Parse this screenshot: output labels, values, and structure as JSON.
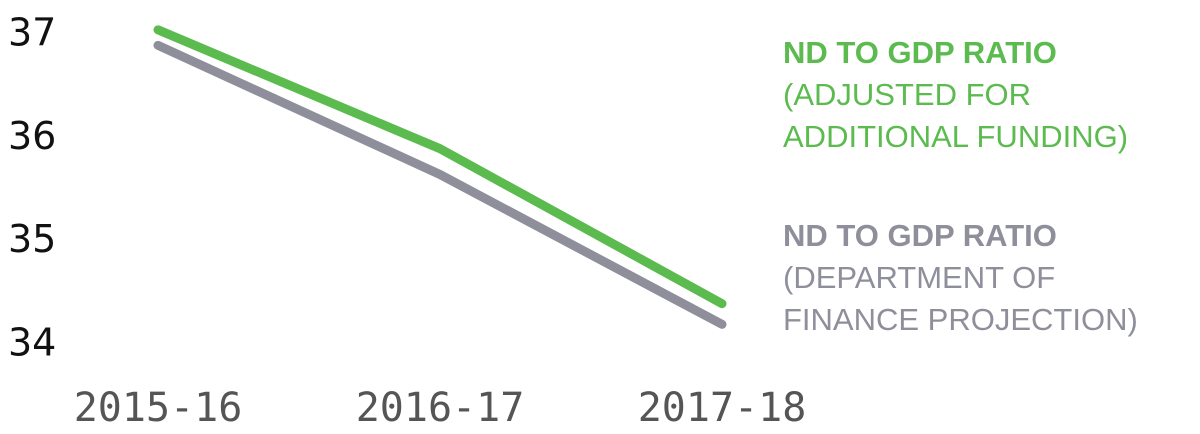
{
  "chart_data": {
    "type": "line",
    "categories": [
      "2015-16",
      "2016-17",
      "2017-18"
    ],
    "series": [
      {
        "name": "ND TO GDP RATIO",
        "note": "(ADJUSTED FOR ADDITIONAL FUNDING)",
        "color": "#5cbb4f",
        "values": [
          37.05,
          35.9,
          34.4
        ]
      },
      {
        "name": "ND TO GDP RATIO",
        "note": "(DEPARTMENT OF FINANCE PROJECTION)",
        "color": "#8e8f9b",
        "values": [
          36.9,
          35.65,
          34.2
        ]
      }
    ],
    "ylim": [
      34,
      37
    ],
    "yticks": [
      34,
      35,
      36,
      37
    ],
    "grid": false
  }
}
